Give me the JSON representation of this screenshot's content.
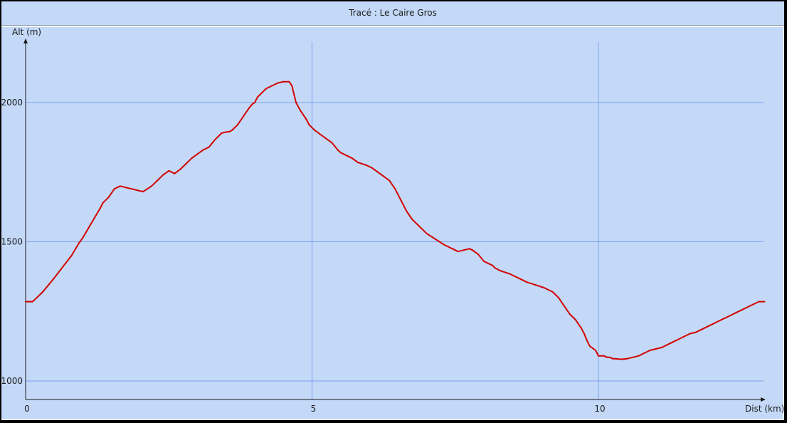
{
  "window": {
    "title": "Tracé : Le Caire Gros"
  },
  "colors": {
    "background": "#c3d9f7",
    "grid": "#7f9ff0",
    "line": "#d40000",
    "axis": "#1a1a1a"
  },
  "chart_data": {
    "type": "line",
    "title": "Tracé : Le Caire Gros",
    "xlabel": "Dist (km)",
    "ylabel": "Alt (m)",
    "xlim": [
      0,
      12.9
    ],
    "ylim": [
      950,
      2175
    ],
    "x_ticks": [
      0,
      5,
      10
    ],
    "y_ticks": [
      1000,
      1500,
      2000
    ],
    "grid": true,
    "series": [
      {
        "x": [
          0,
          0.12,
          0.2,
          0.3,
          0.4,
          0.5,
          0.65,
          0.8,
          0.93,
          1.0,
          1.1,
          1.2,
          1.3,
          1.35,
          1.45,
          1.55,
          1.65,
          1.75,
          1.85,
          1.95,
          2.05,
          2.2,
          2.3,
          2.4,
          2.5,
          2.6,
          2.7,
          2.8,
          2.9,
          3.0,
          3.1,
          3.2,
          3.3,
          3.42,
          3.48,
          3.52,
          3.55,
          3.6,
          3.7,
          3.8,
          3.9,
          3.96,
          4.0,
          4.05,
          4.1,
          4.2,
          4.3,
          4.4,
          4.5,
          4.6,
          4.65,
          4.72,
          4.8,
          4.9,
          4.95,
          5.05,
          5.15,
          5.25,
          5.35,
          5.45,
          5.5,
          5.6,
          5.7,
          5.8,
          5.95,
          6.05,
          6.15,
          6.25,
          6.35,
          6.45,
          6.55,
          6.65,
          6.75,
          6.85,
          7.0,
          7.15,
          7.3,
          7.45,
          7.55,
          7.65,
          7.75,
          7.8,
          7.9,
          8.0,
          8.1,
          8.15,
          8.2,
          8.3,
          8.45,
          8.6,
          8.75,
          8.9,
          9.05,
          9.2,
          9.3,
          9.4,
          9.5,
          9.6,
          9.7,
          9.75,
          9.8,
          9.85,
          9.95,
          10.0,
          10.1,
          10.15,
          10.2,
          10.25,
          10.3,
          10.4,
          10.5,
          10.6,
          10.7,
          10.8,
          10.9,
          11.0,
          11.1,
          11.2,
          11.3,
          11.4,
          11.5,
          11.6,
          11.7,
          11.8,
          11.95,
          12.1,
          12.25,
          12.4,
          12.55,
          12.7,
          12.8,
          12.9
        ],
        "y": [
          1285,
          1285,
          1300,
          1320,
          1345,
          1370,
          1410,
          1450,
          1495,
          1515,
          1550,
          1585,
          1620,
          1640,
          1660,
          1690,
          1700,
          1695,
          1690,
          1685,
          1680,
          1700,
          1720,
          1740,
          1755,
          1745,
          1760,
          1780,
          1800,
          1815,
          1830,
          1840,
          1865,
          1890,
          1893,
          1895,
          1895,
          1900,
          1920,
          1950,
          1980,
          1995,
          2000,
          2020,
          2030,
          2050,
          2060,
          2070,
          2075,
          2075,
          2060,
          2000,
          1970,
          1940,
          1920,
          1900,
          1885,
          1870,
          1855,
          1830,
          1820,
          1810,
          1800,
          1785,
          1775,
          1765,
          1750,
          1735,
          1720,
          1690,
          1650,
          1610,
          1580,
          1560,
          1530,
          1510,
          1490,
          1475,
          1465,
          1470,
          1475,
          1470,
          1455,
          1430,
          1420,
          1415,
          1405,
          1395,
          1385,
          1370,
          1355,
          1345,
          1335,
          1320,
          1300,
          1270,
          1240,
          1220,
          1190,
          1170,
          1145,
          1125,
          1110,
          1090,
          1090,
          1085,
          1085,
          1080,
          1080,
          1078,
          1080,
          1085,
          1090,
          1100,
          1110,
          1115,
          1120,
          1130,
          1140,
          1150,
          1160,
          1170,
          1175,
          1185,
          1200,
          1215,
          1230,
          1245,
          1260,
          1275,
          1285,
          1285
        ]
      }
    ]
  }
}
